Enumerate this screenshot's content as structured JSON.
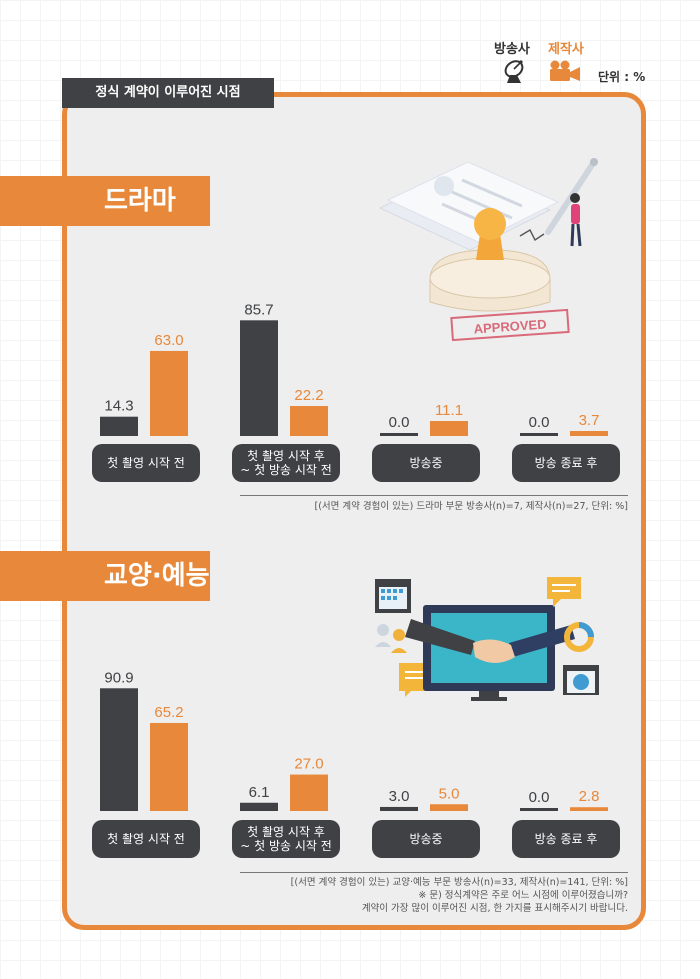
{
  "legend": {
    "broadcaster_label": "방송사",
    "producer_label": "제작사",
    "unit": "단위 : %"
  },
  "header_title": "정식 계약이 이루어진 시점",
  "colors": {
    "broadcaster": "#3f4144",
    "producer": "#e8883a",
    "frame": "#e8883a"
  },
  "drama": {
    "title": "드라마",
    "note": "[(서면 계약 경험이 있는) 드라마 부문 방송사(n)=7, 제작사(n)=27, 단위: %]",
    "stamp_text": "APPROVED"
  },
  "culture": {
    "title": "교양·예능",
    "note_lines": [
      "[(서면 계약 경험이 있는) 교양·예능 부문 방송사(n)=33, 제작사(n)=141, 단위: %]",
      "※ 문) 정식계약은 주로 어느 시점에 이루어졌습니까?",
      "계약이 가장 많이 이루어진 시점, 한 가지를 표시해주시기 바랍니다."
    ]
  },
  "chart_data": [
    {
      "type": "bar",
      "title": "드라마",
      "categories": [
        "첫 촬영 시작 전",
        "첫 촬영 시작 후\n~ 첫 방송 시작 전",
        "방송중",
        "방송 종료 후"
      ],
      "series": [
        {
          "name": "방송사",
          "values": [
            14.3,
            85.7,
            0.0,
            0.0
          ]
        },
        {
          "name": "제작사",
          "values": [
            63.0,
            22.2,
            11.1,
            3.7
          ]
        }
      ],
      "value_labels": {
        "방송사": [
          "14.3",
          "85.7",
          "0.0",
          "0.0"
        ],
        "제작사": [
          "63.0",
          "22.2",
          "11.1",
          "3.7"
        ]
      },
      "ylim": [
        0,
        100
      ]
    },
    {
      "type": "bar",
      "title": "교양·예능",
      "categories": [
        "첫 촬영 시작 전",
        "첫 촬영 시작 후\n~ 첫 방송 시작 전",
        "방송중",
        "방송 종료 후"
      ],
      "series": [
        {
          "name": "방송사",
          "values": [
            90.9,
            6.1,
            3.0,
            0.0
          ]
        },
        {
          "name": "제작사",
          "values": [
            65.2,
            27.0,
            5.0,
            2.8
          ]
        }
      ],
      "value_labels": {
        "방송사": [
          "90.9",
          "6.1",
          "3.0",
          "0.0"
        ],
        "제작사": [
          "65.2",
          "27.0",
          "5.0",
          "2.8"
        ]
      },
      "ylim": [
        0,
        100
      ]
    }
  ]
}
